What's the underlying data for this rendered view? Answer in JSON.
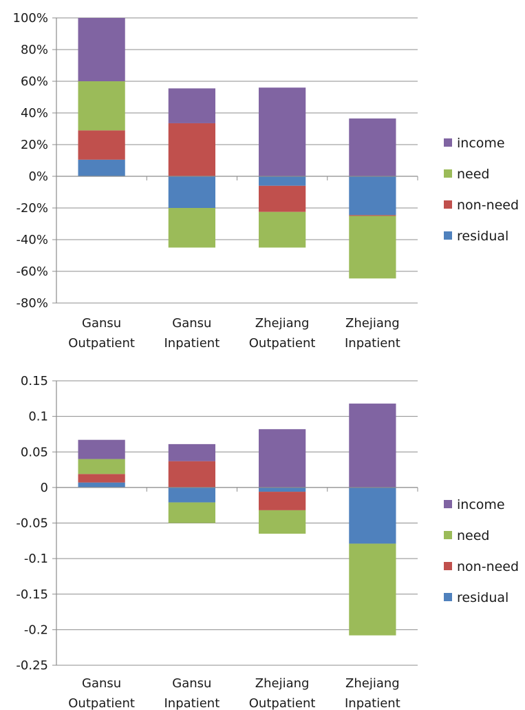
{
  "chart_data": [
    {
      "type": "bar",
      "stacked": true,
      "categories": [
        [
          "Gansu",
          "Outpatient"
        ],
        [
          "Gansu",
          "Inpatient"
        ],
        [
          "Zhejiang",
          "Outpatient"
        ],
        [
          "Zhejiang",
          "Inpatient"
        ]
      ],
      "ylim": [
        -0.8,
        1.0
      ],
      "yticks": [
        1.0,
        0.8,
        0.6,
        0.4,
        0.2,
        0.0,
        -0.2,
        -0.4,
        -0.6,
        -0.8
      ],
      "ytick_labels": [
        "100%",
        "80%",
        "60%",
        "40%",
        "20%",
        "0%",
        "-20%",
        "-40%",
        "-60%",
        "-80%"
      ],
      "grid": true,
      "legend_position": "right",
      "legend": [
        "income",
        "need",
        "non-need",
        "residual"
      ],
      "series": [
        {
          "name": "residual",
          "color": "#4f81bd",
          "values": [
            0.105,
            -0.2,
            -0.06,
            -0.245
          ]
        },
        {
          "name": "non-need",
          "color": "#c0504d",
          "values": [
            0.185,
            0.335,
            -0.165,
            -0.005
          ]
        },
        {
          "name": "need",
          "color": "#9bbb59",
          "values": [
            0.31,
            -0.25,
            -0.225,
            -0.395
          ]
        },
        {
          "name": "income",
          "color": "#8064a2",
          "values": [
            0.4,
            0.22,
            0.56,
            0.365
          ]
        }
      ]
    },
    {
      "type": "bar",
      "stacked": true,
      "categories": [
        [
          "Gansu",
          "Outpatient"
        ],
        [
          "Gansu",
          "Inpatient"
        ],
        [
          "Zhejiang",
          "Outpatient"
        ],
        [
          "Zhejiang",
          "Inpatient"
        ]
      ],
      "ylim": [
        -0.25,
        0.15
      ],
      "yticks": [
        0.15,
        0.1,
        0.05,
        0,
        -0.05,
        -0.1,
        -0.15,
        -0.2,
        -0.25
      ],
      "ytick_labels": [
        "0.15",
        "0.1",
        "0.05",
        "0",
        "-0.05",
        "-0.1",
        "-0.15",
        "-0.2",
        "-0.25"
      ],
      "grid": true,
      "legend_position": "right",
      "legend": [
        "income",
        "need",
        "non-need",
        "residual"
      ],
      "series": [
        {
          "name": "residual",
          "color": "#4f81bd",
          "values": [
            0.007,
            -0.021,
            -0.006,
            -0.079
          ]
        },
        {
          "name": "non-need",
          "color": "#c0504d",
          "values": [
            0.012,
            0.037,
            -0.026,
            0.0
          ]
        },
        {
          "name": "need",
          "color": "#9bbb59",
          "values": [
            0.021,
            -0.029,
            -0.033,
            -0.129
          ]
        },
        {
          "name": "income",
          "color": "#8064a2",
          "values": [
            0.027,
            0.024,
            0.082,
            0.118
          ]
        }
      ]
    }
  ]
}
